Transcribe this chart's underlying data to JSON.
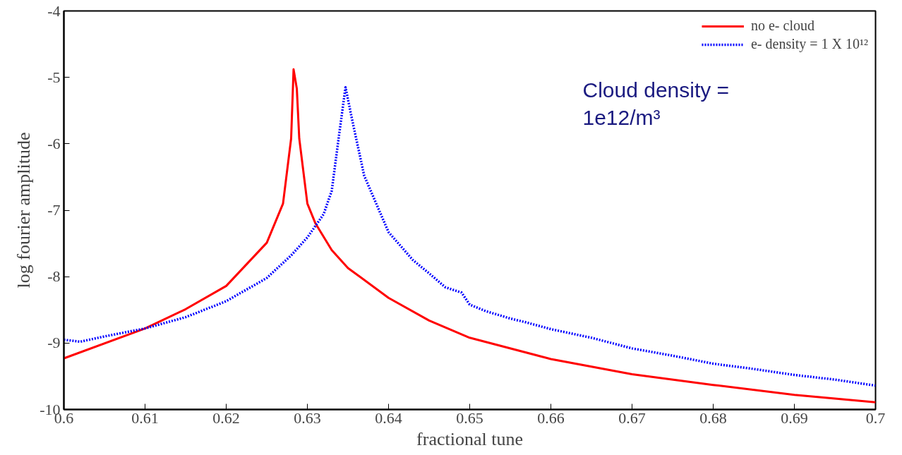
{
  "chart_data": {
    "type": "line",
    "xlabel": "fractional tune",
    "ylabel": "log fourier amplitude",
    "xlim": [
      0.6,
      0.7
    ],
    "ylim": [
      -10,
      -4
    ],
    "xticks": [
      0.6,
      0.61,
      0.62,
      0.63,
      0.64,
      0.65,
      0.66,
      0.67,
      0.68,
      0.69,
      0.7
    ],
    "yticks": [
      -10,
      -9,
      -8,
      -7,
      -6,
      -5,
      -4
    ],
    "grid": false,
    "legend": "top right",
    "annotations": [
      "Cloud density =\n  1e12/m³"
    ],
    "series": [
      {
        "name": "no e- cloud",
        "color": "#ff0000",
        "line_style": "solid",
        "x": [
          0.6,
          0.61,
          0.615,
          0.62,
          0.625,
          0.627,
          0.628,
          0.6283,
          0.6287,
          0.629,
          0.63,
          0.631,
          0.633,
          0.635,
          0.64,
          0.645,
          0.65,
          0.66,
          0.67,
          0.68,
          0.69,
          0.7
        ],
        "values": [
          -9.23,
          -8.78,
          -8.49,
          -8.14,
          -7.49,
          -6.9,
          -5.92,
          -4.88,
          -5.17,
          -5.92,
          -6.9,
          -7.2,
          -7.6,
          -7.87,
          -8.32,
          -8.66,
          -8.92,
          -9.24,
          -9.47,
          -9.63,
          -9.78,
          -9.89
        ]
      },
      {
        "name": "e- density = 1 X 10¹²",
        "color": "#0000ff",
        "line_style": "dotted",
        "x": [
          0.6,
          0.602,
          0.605,
          0.61,
          0.615,
          0.62,
          0.625,
          0.628,
          0.63,
          0.632,
          0.633,
          0.634,
          0.6347,
          0.6355,
          0.637,
          0.64,
          0.643,
          0.645,
          0.647,
          0.649,
          0.65,
          0.652,
          0.655,
          0.657,
          0.66,
          0.665,
          0.67,
          0.675,
          0.68,
          0.685,
          0.69,
          0.695,
          0.7
        ],
        "values": [
          -8.95,
          -8.98,
          -8.9,
          -8.78,
          -8.61,
          -8.37,
          -8.02,
          -7.68,
          -7.41,
          -7.06,
          -6.71,
          -5.78,
          -5.15,
          -5.63,
          -6.48,
          -7.33,
          -7.75,
          -7.95,
          -8.16,
          -8.24,
          -8.42,
          -8.52,
          -8.63,
          -8.69,
          -8.79,
          -8.92,
          -9.08,
          -9.19,
          -9.31,
          -9.39,
          -9.48,
          -9.55,
          -9.64
        ]
      }
    ]
  }
}
